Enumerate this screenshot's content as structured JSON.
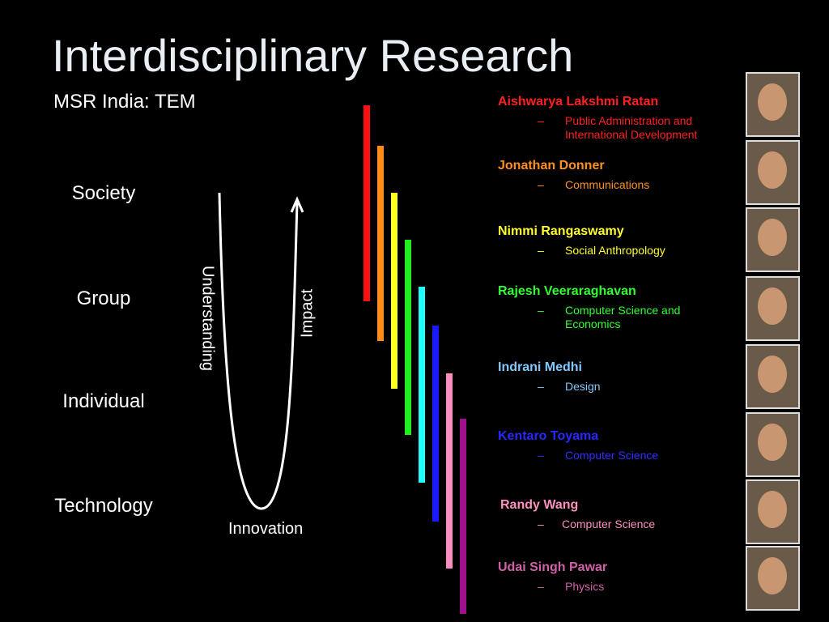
{
  "header": {
    "title": "Interdisciplinary Research",
    "subtitle": "MSR India: TEM"
  },
  "levels": [
    "Society",
    "Group",
    "Individual",
    "Technology"
  ],
  "curve": {
    "left_label": "Understanding",
    "right_label": "Impact",
    "bottom_label": "Innovation"
  },
  "people": [
    {
      "name": "Aishwarya Lakshmi Ratan",
      "field": "Public Administration and International Development"
    },
    {
      "name": "Jonathan Donner",
      "field": "Communications"
    },
    {
      "name": "Nimmi Rangaswamy",
      "field": "Social Anthropology"
    },
    {
      "name": "Rajesh Veeraraghavan",
      "field": "Computer Science and Economics"
    },
    {
      "name": "Indrani Medhi",
      "field": "Design"
    },
    {
      "name": "Kentaro Toyama",
      "field": "Computer Science"
    },
    {
      "name": "Randy Wang",
      "field": "Computer Science"
    },
    {
      "name": "Udai Singh Pawar",
      "field": "Physics"
    }
  ]
}
